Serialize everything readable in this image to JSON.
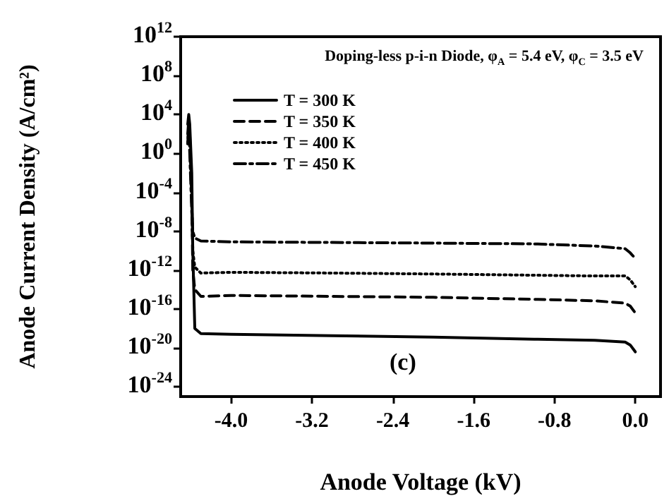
{
  "chart_data": {
    "type": "line",
    "title": "Doping-less p-i-n Diode, φ$_{A}$ = 5.4 eV, φ$_{C}$ = 3.5 eV",
    "xlabel": "Anode Voltage (kV)",
    "ylabel": "Anode Current Density (A/cm²)",
    "annotations": [
      "(c)"
    ],
    "x": [
      -4.43,
      -4.42,
      -4.41,
      -4.39,
      -4.38,
      -4.36,
      -4.3,
      -4.0,
      -3.0,
      -2.0,
      -1.0,
      -0.4,
      -0.1,
      -0.05,
      0.0
    ],
    "series": [
      {
        "name": "T = 300 K",
        "color": "#000000",
        "line_style": "solid",
        "values": [
          1000.0,
          10000.0,
          1000.0,
          0.01,
          1e-10,
          1e-18,
          3e-19,
          2.5e-19,
          1.8e-19,
          1.3e-19,
          8e-20,
          6e-20,
          4e-20,
          2e-20,
          4e-21
        ]
      },
      {
        "name": "T = 350 K",
        "color": "#000000",
        "line_style": "dashed",
        "values": [
          100.0,
          3000.0,
          100.0,
          0.0001,
          1e-12,
          1e-14,
          2e-15,
          2.5e-15,
          2e-15,
          1.6e-15,
          1e-15,
          7e-16,
          4e-16,
          2e-16,
          4e-17
        ]
      },
      {
        "name": "T = 400 K",
        "color": "#000000",
        "line_style": "dotted",
        "values": [
          10.0,
          1000.0,
          10.0,
          1e-05,
          1e-10,
          2e-12,
          5e-13,
          6e-13,
          5e-13,
          4e-13,
          3e-13,
          2.5e-13,
          2.5e-13,
          1e-13,
          2e-14
        ]
      },
      {
        "name": "T = 450 K",
        "color": "#000000",
        "line_style": "dashdot",
        "values": [
          10.0,
          1000.0,
          1.0,
          1e-06,
          1e-08,
          2e-09,
          1e-09,
          8e-10,
          7e-10,
          6e-10,
          5e-10,
          3e-10,
          1.6e-10,
          6e-11,
          1.6e-11
        ]
      }
    ],
    "log": "y",
    "marker": "none",
    "legend": "top left",
    "grid": false,
    "xlim": [
      -4.5,
      0.25
    ],
    "xticks": [
      {
        "value": -4,
        "label": "-4.0"
      },
      {
        "value": -3.2,
        "label": "-3.2"
      },
      {
        "value": -2.4,
        "label": "-2.4"
      },
      {
        "value": -1.6,
        "label": "-1.6"
      },
      {
        "value": -0.8,
        "label": "-0.8"
      },
      {
        "value": 0,
        "label": "0.0"
      }
    ],
    "ylim": [
      1e-25,
      1000000000000.0
    ],
    "yticks": [
      {
        "value": 1000000000000.0,
        "label": "10$^{12}$"
      },
      {
        "value": 100000000.0,
        "label": "10$^{8}$"
      },
      {
        "value": 10000.0,
        "label": "10$^{4}$"
      },
      {
        "value": 1,
        "label": "10$^{0}$"
      },
      {
        "value": 0.0001,
        "label": "10$^{-4}$"
      },
      {
        "value": 1e-08,
        "label": "10$^{-8}$"
      },
      {
        "value": 1e-12,
        "label": "10$^{-12}$"
      },
      {
        "value": 1e-16,
        "label": "10$^{-16}$"
      },
      {
        "value": 1e-20,
        "label": "10$^{-20}$"
      },
      {
        "value": 1e-24,
        "label": "10$^{-24}$"
      }
    ]
  }
}
